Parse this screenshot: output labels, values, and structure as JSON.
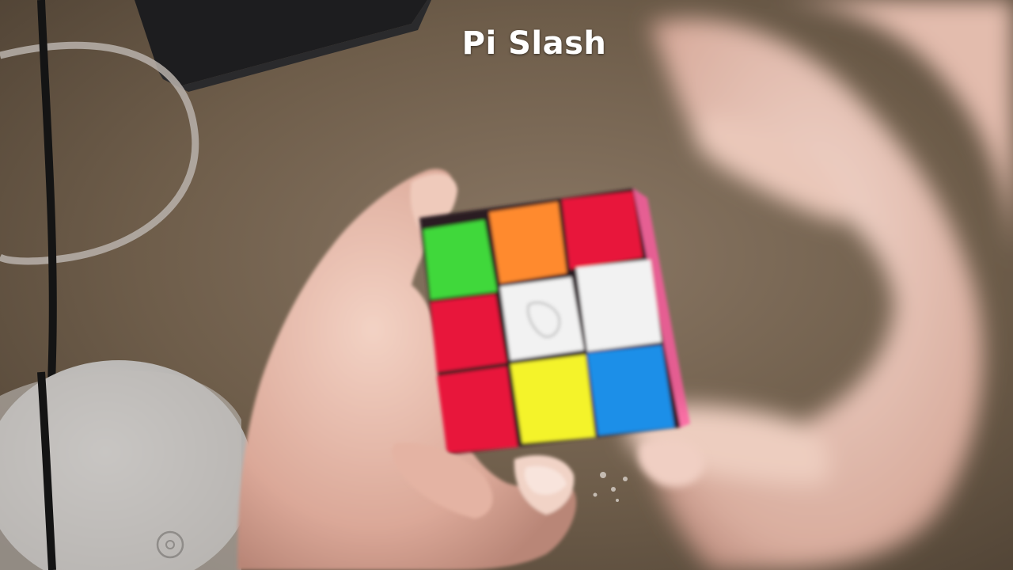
{
  "caption": {
    "title": "Pi Slash"
  },
  "scene": {
    "description_label": "hands-turning-rubiks-cube",
    "cube_face_colors": [
      [
        "green",
        "orange",
        "red"
      ],
      [
        "red",
        "white",
        "white"
      ],
      [
        "red",
        "yellow",
        "blue"
      ]
    ],
    "colors": {
      "table": "#6b5a47",
      "sticker_green": "#3fd83a",
      "sticker_orange": "#ff8a2e",
      "sticker_red": "#e8143a",
      "sticker_white": "#f2f2f2",
      "sticker_yellow": "#f4f32a",
      "sticker_blue": "#1a8fe8",
      "cube_body": "#ff5aa0",
      "skin": "#e8b8a6"
    }
  }
}
